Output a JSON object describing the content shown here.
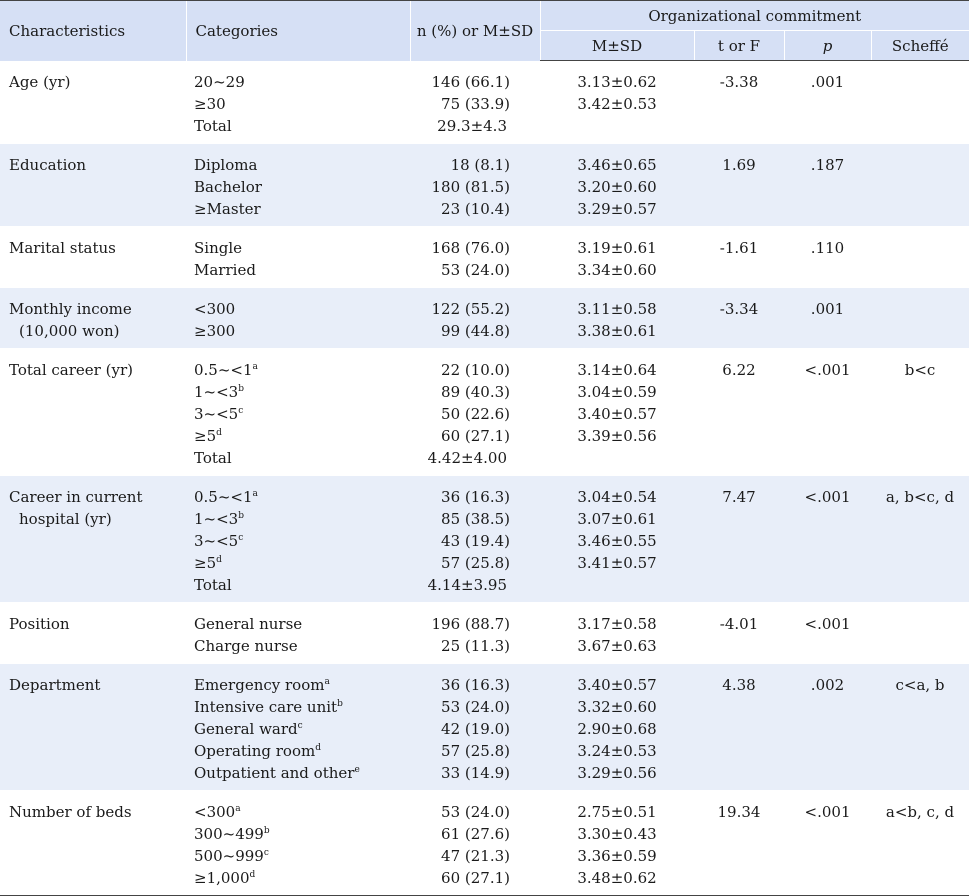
{
  "headers": {
    "characteristics": "Characteristics",
    "categories": "Categories",
    "n_pct": "n (%) or M±SD",
    "group": "Organizational commitment",
    "msd": "M±SD",
    "torf": "t or F",
    "p": "p",
    "scheffe": "Scheffé"
  },
  "rows": [
    {
      "char": [
        "Age (yr)"
      ],
      "cats": [
        {
          "t": "20~29",
          "s": ""
        },
        {
          "t": "≥30",
          "s": ""
        },
        {
          "t": "Total",
          "s": ""
        }
      ],
      "n": [
        "146 (66.1)",
        "75 (33.9)",
        "29.3±4.3"
      ],
      "msd": [
        "3.13±0.62",
        "3.42±0.53"
      ],
      "tf": "-3.38",
      "p": ".001",
      "scheffe": ""
    },
    {
      "char": [
        "Education"
      ],
      "cats": [
        {
          "t": "Diploma",
          "s": ""
        },
        {
          "t": "Bachelor",
          "s": ""
        },
        {
          "t": "≥Master",
          "s": ""
        }
      ],
      "n": [
        "18 (8.1)",
        "180 (81.5)",
        "23 (10.4)"
      ],
      "msd": [
        "3.46±0.65",
        "3.20±0.60",
        "3.29±0.57"
      ],
      "tf": "1.69",
      "p": ".187",
      "scheffe": ""
    },
    {
      "char": [
        "Marital status"
      ],
      "cats": [
        {
          "t": "Single",
          "s": ""
        },
        {
          "t": "Married",
          "s": ""
        }
      ],
      "n": [
        "168 (76.0)",
        "53 (24.0)"
      ],
      "msd": [
        "3.19±0.61",
        "3.34±0.60"
      ],
      "tf": "-1.61",
      "p": ".110",
      "scheffe": ""
    },
    {
      "char": [
        "Monthly income",
        "(10,000 won)"
      ],
      "cats": [
        {
          "t": "<300",
          "s": ""
        },
        {
          "t": "≥300",
          "s": ""
        }
      ],
      "n": [
        "122 (55.2)",
        "99 (44.8)"
      ],
      "msd": [
        "3.11±0.58",
        "3.38±0.61"
      ],
      "tf": "-3.34",
      "p": ".001",
      "scheffe": ""
    },
    {
      "char": [
        "Total career (yr)"
      ],
      "cats": [
        {
          "t": "0.5~<1",
          "s": "a"
        },
        {
          "t": "1~<3",
          "s": "b"
        },
        {
          "t": "3~<5",
          "s": "c"
        },
        {
          "t": "≥5",
          "s": "d"
        },
        {
          "t": "Total",
          "s": ""
        }
      ],
      "n": [
        "22 (10.0)",
        "89 (40.3)",
        "50 (22.6)",
        "60 (27.1)",
        "4.42±4.00"
      ],
      "msd": [
        "3.14±0.64",
        "3.04±0.59",
        "3.40±0.57",
        "3.39±0.56"
      ],
      "tf": "6.22",
      "p": "<.001",
      "scheffe": "b<c"
    },
    {
      "char": [
        "Career in current",
        "hospital (yr)"
      ],
      "cats": [
        {
          "t": "0.5~<1",
          "s": "a"
        },
        {
          "t": "1~<3",
          "s": "b"
        },
        {
          "t": "3~<5",
          "s": "c"
        },
        {
          "t": "≥5",
          "s": "d"
        },
        {
          "t": "Total",
          "s": ""
        }
      ],
      "n": [
        "36 (16.3)",
        "85 (38.5)",
        "43 (19.4)",
        "57 (25.8)",
        "4.14±3.95"
      ],
      "msd": [
        "3.04±0.54",
        "3.07±0.61",
        "3.46±0.55",
        "3.41±0.57"
      ],
      "tf": "7.47",
      "p": "<.001",
      "scheffe": "a, b<c, d"
    },
    {
      "char": [
        "Position"
      ],
      "cats": [
        {
          "t": "General nurse",
          "s": ""
        },
        {
          "t": "Charge nurse",
          "s": ""
        }
      ],
      "n": [
        "196 (88.7)",
        "25 (11.3)"
      ],
      "msd": [
        "3.17±0.58",
        "3.67±0.63"
      ],
      "tf": "-4.01",
      "p": "<.001",
      "scheffe": ""
    },
    {
      "char": [
        "Department"
      ],
      "cats": [
        {
          "t": "Emergency room",
          "s": "a"
        },
        {
          "t": "Intensive care unit",
          "s": "b"
        },
        {
          "t": "General ward",
          "s": "c"
        },
        {
          "t": "Operating room",
          "s": "d"
        },
        {
          "t": "Outpatient and other",
          "s": "e"
        }
      ],
      "n": [
        "36 (16.3)",
        "53 (24.0)",
        "42 (19.0)",
        "57 (25.8)",
        "33 (14.9)"
      ],
      "msd": [
        "3.40±0.57",
        "3.32±0.60",
        "2.90±0.68",
        "3.24±0.53",
        "3.29±0.56"
      ],
      "tf": "4.38",
      "p": ".002",
      "scheffe": "c<a, b"
    },
    {
      "char": [
        "Number of beds"
      ],
      "cats": [
        {
          "t": "<300",
          "s": "a"
        },
        {
          "t": "300~499",
          "s": "b"
        },
        {
          "t": "500~999",
          "s": "c"
        },
        {
          "t": "≥1,000",
          "s": "d"
        }
      ],
      "n": [
        "53 (24.0)",
        "61 (27.6)",
        "47 (21.3)",
        "60 (27.1)"
      ],
      "msd": [
        "2.75±0.51",
        "3.30±0.43",
        "3.36±0.59",
        "3.48±0.62"
      ],
      "tf": "19.34",
      "p": "<.001",
      "scheffe": "a<b, c, d"
    }
  ]
}
